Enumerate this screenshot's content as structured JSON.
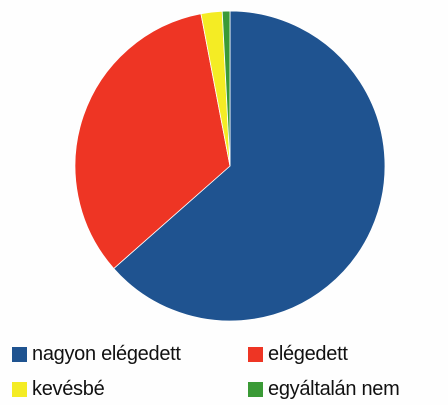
{
  "chart_data": {
    "type": "pie",
    "series": [
      {
        "name": "nagyon elégedett",
        "value": 63.5,
        "color": "#1f5390"
      },
      {
        "name": "elégedett",
        "value": 33.5,
        "color": "#ee3524"
      },
      {
        "name": "kevésbé",
        "value": 2.2,
        "color": "#f4ec24"
      },
      {
        "name": "egyáltalán nem",
        "value": 0.8,
        "color": "#3a9a36"
      }
    ],
    "legend_position": "bottom",
    "start": "top",
    "direction": "clockwise"
  }
}
